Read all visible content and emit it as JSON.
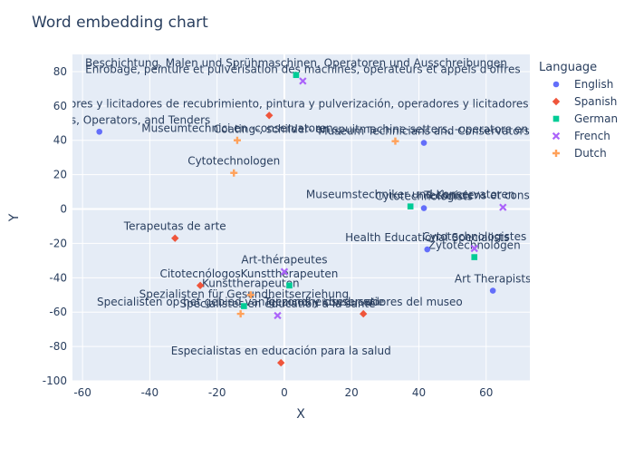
{
  "chart_data": {
    "type": "scatter",
    "title": "Word embedding chart",
    "xlabel": "X",
    "ylabel": "Y",
    "xlim": [
      -63,
      73
    ],
    "ylim": [
      -100,
      90
    ],
    "xticks": [
      -60,
      -40,
      -20,
      0,
      20,
      40,
      60
    ],
    "yticks": [
      -100,
      -80,
      -60,
      -40,
      -20,
      0,
      20,
      40,
      60,
      80
    ],
    "grid": true,
    "legend_title": "Language",
    "legend_position": "right",
    "series": [
      {
        "name": "English",
        "color": "#636efa",
        "symbol": "circle",
        "points": [
          {
            "x": -55,
            "y": 45,
            "label": "Machine Setters, Operators, and Tenders"
          },
          {
            "x": 41.5,
            "y": 38.5,
            "label": "Museum Technicians and Conservators"
          },
          {
            "x": 41.5,
            "y": 0.5,
            "label": "Cytotechnologists"
          },
          {
            "x": 42.5,
            "y": -23.5,
            "label": "Health Educational Specialists"
          },
          {
            "x": 62,
            "y": -47.5,
            "label": "Art Therapists"
          }
        ]
      },
      {
        "name": "Spanish",
        "color": "#ef553b",
        "symbol": "diamond",
        "points": [
          {
            "x": -32.5,
            "y": -17,
            "label": "Terapeutas de arte"
          },
          {
            "x": -25,
            "y": -44.5,
            "label": "Citotecnólogos"
          },
          {
            "x": -4.5,
            "y": 54.5,
            "label": "Configuradores y licitadores de recubrimiento, pintura y pulverización, operadores y licitadores"
          },
          {
            "x": -1,
            "y": -89.5,
            "label": "Especialistas en educación para la salud"
          },
          {
            "x": 23.5,
            "y": -61,
            "label": "Técnicos y conservadores del museo"
          }
        ]
      },
      {
        "name": "German",
        "color": "#00cc96",
        "symbol": "square",
        "points": [
          {
            "x": 3.5,
            "y": 78,
            "label": "Beschichtung, Malen und Sprühmaschinen, Operatoren und Ausschreibungen"
          },
          {
            "x": 1.5,
            "y": -44.5,
            "label": "Kunsttherapeuten"
          },
          {
            "x": 37.5,
            "y": 1.5,
            "label": "Museumstechniker und Konservatoren"
          },
          {
            "x": 56.5,
            "y": -28,
            "label": "Zytotechnologen"
          },
          {
            "x": -12,
            "y": -56.5,
            "label": "Spezialisten für Gesundheitserziehung"
          }
        ]
      },
      {
        "name": "French",
        "color": "#ab63fa",
        "symbol": "x",
        "points": [
          {
            "x": 5.5,
            "y": 74.5,
            "label": "Enrobage, peinture et pulvérisation des machines, opérateurs et appels d'offres"
          },
          {
            "x": 0,
            "y": -36.5,
            "label": "Art-thérapeutes"
          },
          {
            "x": -2,
            "y": -62,
            "label": "Spécialistes en éducation à la santé"
          },
          {
            "x": 56.5,
            "y": -23,
            "label": "Cytotechnologistes"
          },
          {
            "x": 65,
            "y": 1,
            "label": "Techniciens et conservateurs"
          }
        ]
      },
      {
        "name": "Dutch",
        "color": "#ffa15a",
        "symbol": "cross",
        "points": [
          {
            "x": -15,
            "y": 21,
            "label": "Cytotechnologen"
          },
          {
            "x": -14,
            "y": 40,
            "label": "Museumtechnici en -conservatoren"
          },
          {
            "x": 33,
            "y": 39.5,
            "label": "Coating-, schilder- en spuitmachine-setters, -operators en -tenders"
          },
          {
            "x": -10,
            "y": -50,
            "label": "Kunsttherapeuten"
          },
          {
            "x": -13,
            "y": -61,
            "label": "Specialisten op het gebied van gezondheidseducatie"
          }
        ]
      }
    ]
  }
}
